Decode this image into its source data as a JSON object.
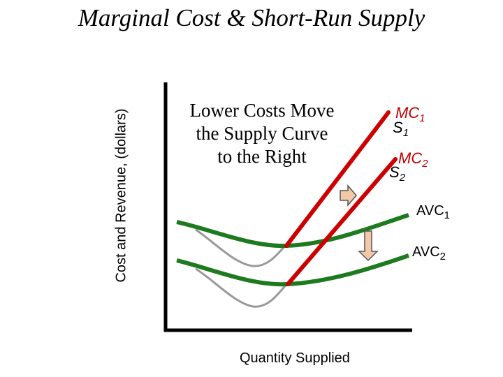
{
  "title": "Marginal Cost & Short-Run Supply",
  "ylabel": "Cost and Revenue, (dollars)",
  "xlabel": "Quantity Supplied",
  "caption": {
    "line1": "Lower Costs Move",
    "line2": "the Supply Curve",
    "line3": "to the Right"
  },
  "labels": {
    "mc1": {
      "main": "MC",
      "sub": "1"
    },
    "s1": {
      "main": "S",
      "sub": "1"
    },
    "mc2": {
      "main": "MC",
      "sub": "2"
    },
    "s2": {
      "main": "S",
      "sub": "2"
    },
    "avc1": {
      "main": "AVC",
      "sub": "1"
    },
    "avc2": {
      "main": "AVC",
      "sub": "2"
    }
  },
  "colors": {
    "mc_curve": "#cc0000",
    "avc_curve": "#1e7a1e",
    "atc_curve": "#999999",
    "axis": "#000000",
    "arrow_fill": "#f2c8a8",
    "arrow_stroke": "#555555"
  }
}
